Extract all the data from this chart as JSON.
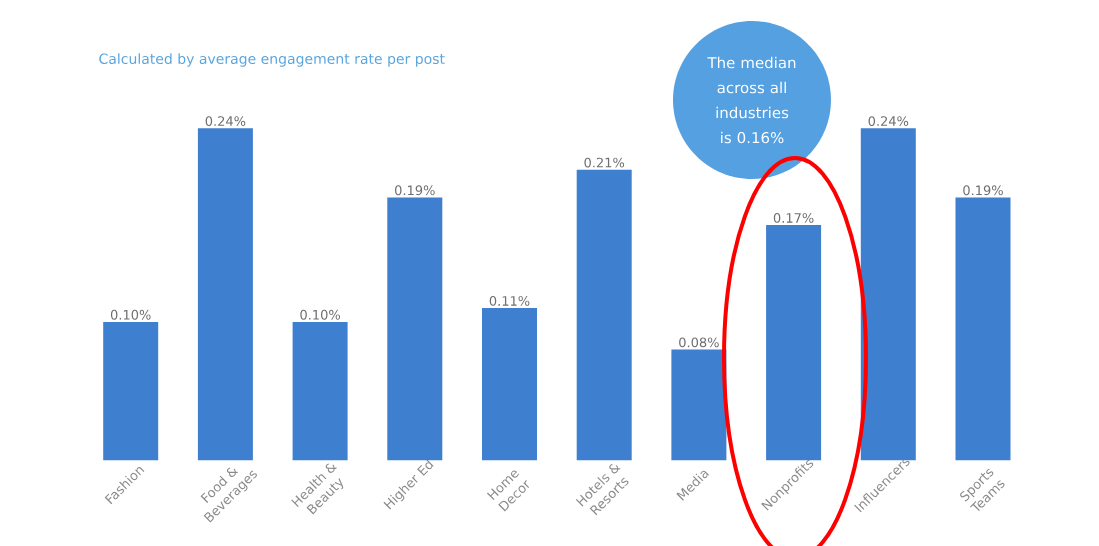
{
  "chart_data": {
    "type": "bar",
    "title": "Calculated by average engagement rate per post",
    "categories": [
      "Fashion",
      "Food & Beverages",
      "Health & Beauty",
      "Higher Ed",
      "Home Decor",
      "Hotels & Resorts",
      "Media",
      "Nonprofits",
      "Influencers",
      "Sports Teams"
    ],
    "values": [
      0.1,
      0.24,
      0.1,
      0.19,
      0.11,
      0.21,
      0.08,
      0.17,
      0.24,
      0.19
    ],
    "value_labels": [
      "0.10%",
      "0.24%",
      "0.10%",
      "0.19%",
      "0.11%",
      "0.21%",
      "0.08%",
      "0.17%",
      "0.24%",
      "0.19%"
    ],
    "color": "#3f7fcf",
    "annotations": [
      "The median across all industries is 0.16%"
    ]
  }
}
